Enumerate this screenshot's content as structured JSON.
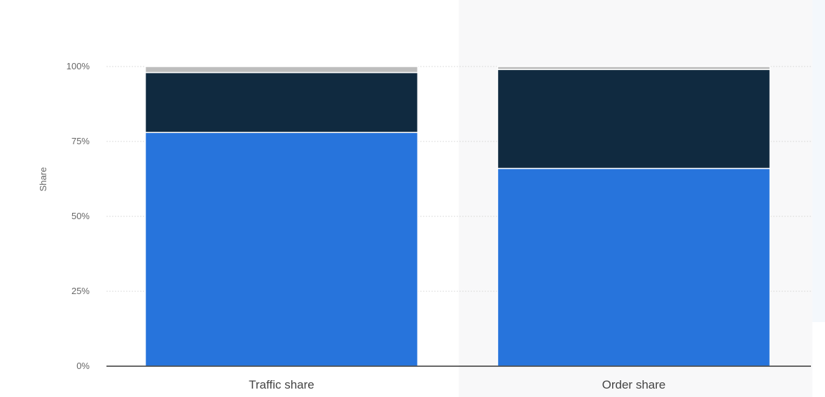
{
  "chart_data": {
    "type": "bar",
    "stacked": true,
    "categories": [
      "Traffic share",
      "Order share"
    ],
    "series": [
      {
        "values": [
          78,
          66
        ],
        "color": "#2774dc"
      },
      {
        "values": [
          20,
          33
        ],
        "color": "#102a40"
      },
      {
        "values": [
          2,
          1
        ],
        "color": "#bdbdbd"
      }
    ],
    "ylabel": "Share",
    "xlabel": "",
    "ylim": [
      0,
      100
    ],
    "yticks": [
      0,
      25,
      50,
      75,
      100
    ],
    "ytick_labels": [
      "0%",
      "25%",
      "50%",
      "75%",
      "100%"
    ],
    "grid": true,
    "legend": "none"
  }
}
